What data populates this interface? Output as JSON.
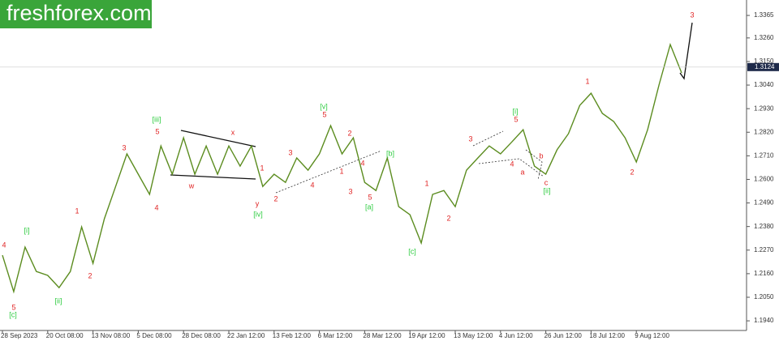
{
  "watermark": "freshforex.com",
  "chart_data": {
    "type": "line",
    "categories": [
      "28 Sep 2023",
      null,
      null,
      null,
      "20 Oct 08:00",
      null,
      null,
      null,
      "13 Nov 08:00",
      null,
      null,
      null,
      "5 Dec 08:00",
      null,
      null,
      null,
      "28 Dec 08:00",
      null,
      null,
      null,
      "22 Jan 12:00",
      null,
      null,
      null,
      "13 Feb 12:00",
      null,
      null,
      null,
      "6 Mar 12:00",
      null,
      null,
      null,
      "28 Mar 12:00",
      null,
      null,
      null,
      "19 Apr 12:00",
      null,
      null,
      null,
      "13 May 12:00",
      null,
      null,
      null,
      "4 Jun 12:00",
      null,
      null,
      null,
      "26 Jun 12:00",
      null,
      null,
      null,
      "18 Jul 12:00",
      null,
      null,
      null,
      "9 Aug 12:00",
      null,
      null,
      null,
      null
    ],
    "series": [
      {
        "color": "#5b8c1f",
        "values": [
          1.2246,
          1.2076,
          1.2284,
          1.217,
          1.2152,
          1.2095,
          1.217,
          1.2378,
          1.2208,
          1.2416,
          1.2567,
          1.2719,
          1.2624,
          1.253,
          1.2756,
          1.2624,
          1.2794,
          1.2624,
          1.2756,
          1.2624,
          1.2756,
          1.2662,
          1.2756,
          1.2567,
          1.2624,
          1.2586,
          1.27,
          1.2643,
          1.2719,
          1.2851,
          1.2719,
          1.2794,
          1.2586,
          1.2548,
          1.27,
          1.2473,
          1.2435,
          1.2303,
          1.253,
          1.2548,
          1.2473,
          1.2643,
          1.27,
          1.2756,
          1.2719,
          1.2775,
          1.2832,
          1.2662,
          1.2624,
          1.2738,
          1.2813,
          1.2945,
          1.3002,
          1.2908,
          1.287,
          1.2794,
          1.2681,
          1.2832,
          1.304,
          1.3229,
          1.3097
        ]
      }
    ],
    "ylim": [
      1.1895,
      1.3437
    ],
    "yticks": [
      1.3365,
      {
        "value": 1.326,
        "label": "1.3260"
      },
      {
        "value": 1.315,
        "label": "1.3150"
      },
      {
        "value": 1.304,
        "label": "1.3040"
      },
      {
        "value": 1.293,
        "label": "1.2930"
      },
      {
        "value": 1.282,
        "label": "1.2820"
      },
      {
        "value": 1.271,
        "label": "1.2710"
      },
      {
        "value": 1.26,
        "label": "1.2600"
      },
      {
        "value": 1.249,
        "label": "1.2490"
      },
      {
        "value": 1.238,
        "label": "1.2380"
      },
      {
        "value": 1.227,
        "label": "1.2270"
      },
      {
        "value": 1.216,
        "label": "1.2160"
      },
      {
        "value": 1.205,
        "label": "1.2050"
      },
      {
        "value": 1.194,
        "label": "1.1940"
      }
    ],
    "current_price": 1.3124,
    "annotations": [
      {
        "text": "4",
        "color": "#e02424"
      },
      {
        "text": "5",
        "color": "#e02424"
      },
      {
        "text": "[c]",
        "color": "#2ecc40"
      },
      {
        "text": "[i]",
        "color": "#2ecc40"
      },
      {
        "text": "[ii]",
        "color": "#2ecc40"
      },
      {
        "text": "1",
        "color": "#e02424"
      },
      {
        "text": "2",
        "color": "#e02424"
      },
      {
        "text": "3",
        "color": "#e02424"
      },
      {
        "text": "4",
        "color": "#e02424"
      },
      {
        "text": "5",
        "color": "#e02424"
      },
      {
        "text": "[iii]",
        "color": "#2ecc40"
      },
      {
        "text": "x",
        "color": "#e02424"
      },
      {
        "text": "w",
        "color": "#e02424"
      },
      {
        "text": "y",
        "color": "#e02424"
      },
      {
        "text": "[iv]",
        "color": "#2ecc40"
      },
      {
        "text": "1",
        "color": "#e02424"
      },
      {
        "text": "2",
        "color": "#e02424"
      },
      {
        "text": "3",
        "color": "#e02424"
      },
      {
        "text": "4",
        "color": "#e02424"
      },
      {
        "text": "5",
        "color": "#e02424"
      },
      {
        "text": "[v]",
        "color": "#2ecc40"
      },
      {
        "text": "2",
        "color": "#e02424"
      },
      {
        "text": "1",
        "color": "#e02424"
      },
      {
        "text": "4",
        "color": "#e02424"
      },
      {
        "text": "3",
        "color": "#e02424"
      },
      {
        "text": "5",
        "color": "#e02424"
      },
      {
        "text": "[a]",
        "color": "#2ecc40"
      },
      {
        "text": "[b]",
        "color": "#2ecc40"
      },
      {
        "text": "[c]",
        "color": "#2ecc40"
      },
      {
        "text": "1",
        "color": "#e02424"
      },
      {
        "text": "2",
        "color": "#e02424"
      },
      {
        "text": "3",
        "color": "#e02424"
      },
      {
        "text": "4",
        "color": "#e02424"
      },
      {
        "text": "5",
        "color": "#e02424"
      },
      {
        "text": "[i]",
        "color": "#2ecc40"
      },
      {
        "text": "a",
        "color": "#e02424"
      },
      {
        "text": "b",
        "color": "#e02424"
      },
      {
        "text": "c",
        "color": "#e02424"
      },
      {
        "text": "[ii]",
        "color": "#2ecc40"
      },
      {
        "text": "1",
        "color": "#e02424"
      },
      {
        "text": "2",
        "color": "#e02424"
      },
      {
        "text": "3",
        "color": "#e02424"
      }
    ]
  }
}
